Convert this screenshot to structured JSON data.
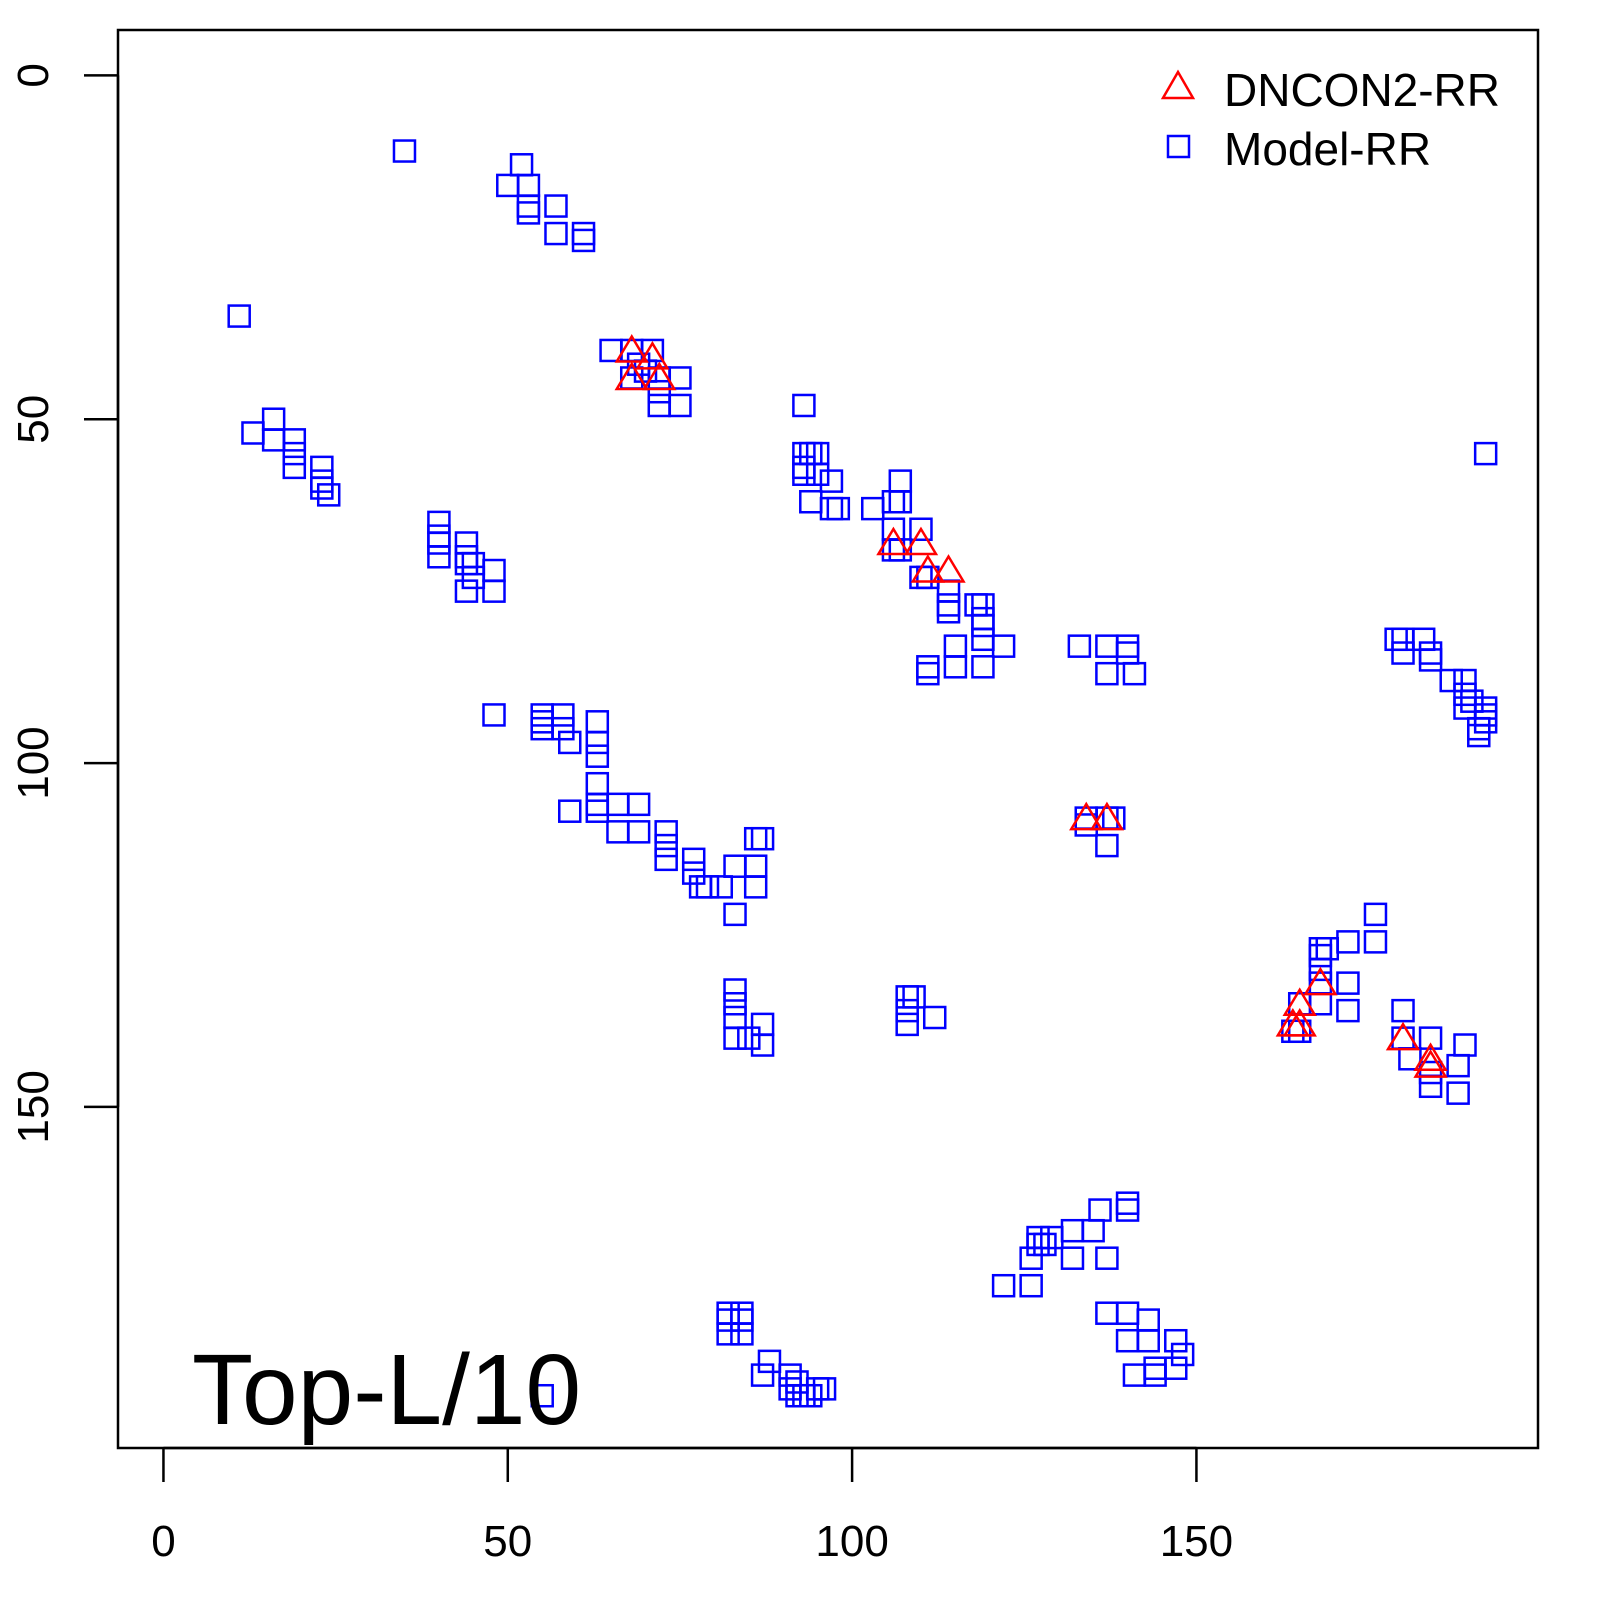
{
  "chart_data": {
    "type": "scatter",
    "title": "",
    "xlabel": "",
    "ylabel": "",
    "xlim": [
      -6.6,
      199.6
    ],
    "ylim": [
      -6.6,
      199.6
    ],
    "y_inverted": true,
    "grid": false,
    "x_ticks": [
      "0",
      "50",
      "100",
      "150"
    ],
    "x_tick_values": [
      0,
      50,
      100,
      150
    ],
    "y_ticks": [
      "0",
      "50",
      "100",
      "150"
    ],
    "y_tick_values": [
      0,
      50,
      100,
      150
    ],
    "legend": {
      "placement": "top-right",
      "entries": [
        {
          "label": "DNCON2-RR",
          "marker": "triangle",
          "color": "#FF0000"
        },
        {
          "label": "Model-RR",
          "marker": "square",
          "color": "#0000FF"
        }
      ]
    },
    "annotation": "Top-L/10",
    "series": [
      {
        "name": "DNCON2-RR",
        "marker": "triangle",
        "color": "#FF0000",
        "points": [
          [
            68,
            40
          ],
          [
            71,
            41
          ],
          [
            68,
            44
          ],
          [
            72,
            44
          ],
          [
            106,
            68
          ],
          [
            110,
            68
          ],
          [
            111,
            72
          ],
          [
            114,
            72
          ],
          [
            134,
            108
          ],
          [
            137,
            108
          ],
          [
            168,
            132
          ],
          [
            165,
            135
          ],
          [
            164,
            138
          ],
          [
            165,
            138
          ],
          [
            180,
            140
          ],
          [
            184,
            143
          ],
          [
            184,
            144
          ]
        ]
      },
      {
        "name": "Model-RR",
        "marker": "square",
        "color": "#0000FF",
        "points": [
          [
            35,
            11
          ],
          [
            52,
            13
          ],
          [
            50,
            16
          ],
          [
            53,
            16
          ],
          [
            53,
            19
          ],
          [
            57,
            19
          ],
          [
            53,
            20
          ],
          [
            57,
            23
          ],
          [
            61,
            23
          ],
          [
            61,
            24
          ],
          [
            11,
            35
          ],
          [
            65,
            40
          ],
          [
            68,
            40
          ],
          [
            71,
            40
          ],
          [
            69,
            42
          ],
          [
            68,
            44
          ],
          [
            72,
            44
          ],
          [
            75,
            44
          ],
          [
            72,
            46
          ],
          [
            72,
            48
          ],
          [
            75,
            48
          ],
          [
            70,
            43
          ],
          [
            16,
            50
          ],
          [
            13,
            52
          ],
          [
            16,
            53
          ],
          [
            19,
            53
          ],
          [
            19,
            55
          ],
          [
            19,
            57
          ],
          [
            23,
            57
          ],
          [
            23,
            59
          ],
          [
            23,
            60
          ],
          [
            24,
            61
          ],
          [
            40,
            65
          ],
          [
            40,
            67
          ],
          [
            40,
            68
          ],
          [
            40,
            70
          ],
          [
            44,
            68
          ],
          [
            44,
            70
          ],
          [
            44,
            71
          ],
          [
            45,
            71
          ],
          [
            48,
            72
          ],
          [
            44,
            75
          ],
          [
            48,
            75
          ],
          [
            45,
            73
          ],
          [
            48,
            93
          ],
          [
            55,
            93
          ],
          [
            58,
            93
          ],
          [
            63,
            94
          ],
          [
            55,
            94
          ],
          [
            55,
            95
          ],
          [
            58,
            95
          ],
          [
            59,
            97
          ],
          [
            63,
            97
          ],
          [
            63,
            99
          ],
          [
            63,
            103
          ],
          [
            59,
            107
          ],
          [
            63,
            106
          ],
          [
            66,
            106
          ],
          [
            69,
            106
          ],
          [
            63,
            107
          ],
          [
            66,
            110
          ],
          [
            69,
            110
          ],
          [
            73,
            110
          ],
          [
            73,
            112
          ],
          [
            73,
            114
          ],
          [
            77,
            114
          ],
          [
            77,
            116
          ],
          [
            79,
            118
          ],
          [
            78,
            118
          ],
          [
            81,
            118
          ],
          [
            83,
            122
          ],
          [
            83,
            115
          ],
          [
            86,
            115
          ],
          [
            86,
            118
          ],
          [
            86,
            111
          ],
          [
            87,
            111
          ],
          [
            83,
            133
          ],
          [
            83,
            135
          ],
          [
            83,
            137
          ],
          [
            83,
            140
          ],
          [
            87,
            138
          ],
          [
            87,
            141
          ],
          [
            85,
            140
          ],
          [
            93,
            48
          ],
          [
            93,
            55
          ],
          [
            95,
            55
          ],
          [
            94,
            55
          ],
          [
            93,
            57
          ],
          [
            95,
            58
          ],
          [
            93,
            58
          ],
          [
            97,
            59
          ],
          [
            94,
            62
          ],
          [
            98,
            63
          ],
          [
            97,
            63
          ],
          [
            103,
            63
          ],
          [
            107,
            59
          ],
          [
            107,
            62
          ],
          [
            106,
            62
          ],
          [
            106,
            66
          ],
          [
            110,
            66
          ],
          [
            107,
            69
          ],
          [
            106,
            69
          ],
          [
            110,
            73
          ],
          [
            111,
            73
          ],
          [
            114,
            75
          ],
          [
            114,
            77
          ],
          [
            114,
            78
          ],
          [
            118,
            77
          ],
          [
            119,
            77
          ],
          [
            119,
            79
          ],
          [
            119,
            80
          ],
          [
            119,
            82
          ],
          [
            122,
            83
          ],
          [
            115,
            83
          ],
          [
            115,
            86
          ],
          [
            119,
            86
          ],
          [
            111,
            86
          ],
          [
            111,
            87
          ],
          [
            133,
            83
          ],
          [
            137,
            83
          ],
          [
            140,
            83
          ],
          [
            140,
            84
          ],
          [
            137,
            87
          ],
          [
            141,
            87
          ],
          [
            134,
            108
          ],
          [
            137,
            108
          ],
          [
            134,
            109
          ],
          [
            138,
            108
          ],
          [
            137,
            112
          ],
          [
            192,
            55
          ],
          [
            179,
            82
          ],
          [
            180,
            82
          ],
          [
            183,
            82
          ],
          [
            180,
            84
          ],
          [
            184,
            84
          ],
          [
            184,
            85
          ],
          [
            187,
            88
          ],
          [
            189,
            88
          ],
          [
            189,
            90
          ],
          [
            190,
            91
          ],
          [
            192,
            92
          ],
          [
            189,
            92
          ],
          [
            192,
            93
          ],
          [
            191,
            95
          ],
          [
            191,
            96
          ],
          [
            192,
            94
          ],
          [
            176,
            122
          ],
          [
            176,
            126
          ],
          [
            172,
            126
          ],
          [
            169,
            127
          ],
          [
            168,
            127
          ],
          [
            168,
            128
          ],
          [
            168,
            130
          ],
          [
            172,
            132
          ],
          [
            172,
            136
          ],
          [
            168,
            132
          ],
          [
            168,
            135
          ],
          [
            165,
            135
          ],
          [
            164,
            139
          ],
          [
            165,
            139
          ],
          [
            180,
            136
          ],
          [
            180,
            140
          ],
          [
            181,
            143
          ],
          [
            184,
            140
          ],
          [
            184,
            147
          ],
          [
            188,
            148
          ],
          [
            188,
            144
          ],
          [
            189,
            141
          ],
          [
            184,
            145
          ],
          [
            108,
            134
          ],
          [
            109,
            134
          ],
          [
            108,
            136
          ],
          [
            108,
            138
          ],
          [
            112,
            137
          ],
          [
            122,
            176
          ],
          [
            126,
            176
          ],
          [
            126,
            172
          ],
          [
            127,
            170
          ],
          [
            127,
            169
          ],
          [
            129,
            169
          ],
          [
            128,
            170
          ],
          [
            132,
            168
          ],
          [
            132,
            172
          ],
          [
            137,
            172
          ],
          [
            135,
            168
          ],
          [
            136,
            165
          ],
          [
            140,
            164
          ],
          [
            140,
            165
          ],
          [
            137,
            180
          ],
          [
            140,
            180
          ],
          [
            143,
            181
          ],
          [
            140,
            184
          ],
          [
            143,
            184
          ],
          [
            147,
            184
          ],
          [
            147,
            188
          ],
          [
            144,
            188
          ],
          [
            141,
            189
          ],
          [
            148,
            186
          ],
          [
            144,
            189
          ],
          [
            82,
            180
          ],
          [
            84,
            180
          ],
          [
            82,
            181
          ],
          [
            84,
            181
          ],
          [
            84,
            183
          ],
          [
            82,
            183
          ],
          [
            88,
            187
          ],
          [
            87,
            189
          ],
          [
            91,
            189
          ],
          [
            92,
            190
          ],
          [
            92,
            192
          ],
          [
            95,
            191
          ],
          [
            96,
            191
          ],
          [
            93,
            192
          ],
          [
            94,
            192
          ],
          [
            91,
            191
          ],
          [
            55,
            192
          ]
        ]
      }
    ]
  }
}
